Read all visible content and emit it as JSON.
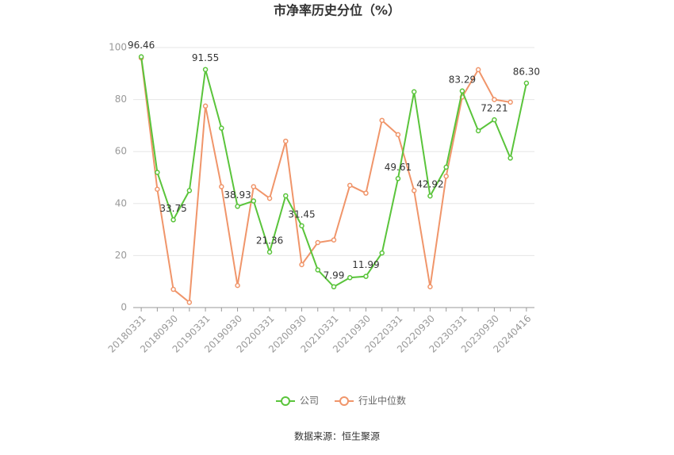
{
  "chart_data": {
    "type": "line",
    "title": "市净率历史分位（%）",
    "categories": [
      "20180331",
      null,
      "20180930",
      null,
      "20190331",
      null,
      "20190930",
      null,
      "20200331",
      null,
      "20200930",
      null,
      "20210331",
      null,
      "20210930",
      null,
      "20220331",
      null,
      "20220930",
      null,
      "20230331",
      null,
      "20230930",
      null,
      "20240416"
    ],
    "series": [
      {
        "name": "公司",
        "color": "#5ac43b",
        "values": [
          96.46,
          52,
          33.75,
          45,
          91.55,
          69,
          38.93,
          41,
          21.36,
          43,
          31.45,
          14.5,
          7.99,
          11.5,
          11.99,
          21,
          49.61,
          83,
          42.92,
          54,
          83.29,
          68,
          72.21,
          57.5,
          86.3
        ],
        "value_labels": [
          "96.46",
          null,
          "33.75",
          null,
          "91.55",
          null,
          "38.93",
          null,
          "21.36",
          null,
          "31.45",
          null,
          "7.99",
          null,
          "11.99",
          null,
          "49.61",
          null,
          "42.92",
          null,
          "83.29",
          null,
          "72.21",
          null,
          "86.30"
        ]
      },
      {
        "name": "行业中位数",
        "color": "#f0956a",
        "values": [
          96,
          45.5,
          7,
          2,
          77.5,
          46.5,
          8.5,
          46.5,
          42,
          64,
          16.5,
          25,
          26,
          47,
          44,
          72,
          66.5,
          45,
          8,
          50.5,
          81,
          91.5,
          80,
          79,
          null
        ]
      }
    ],
    "ylim": [
      0,
      100
    ],
    "yticks": [
      0,
      20,
      40,
      60,
      80,
      100
    ],
    "grid": true,
    "legend": "bottom",
    "source": "数据来源：恒生聚源"
  }
}
